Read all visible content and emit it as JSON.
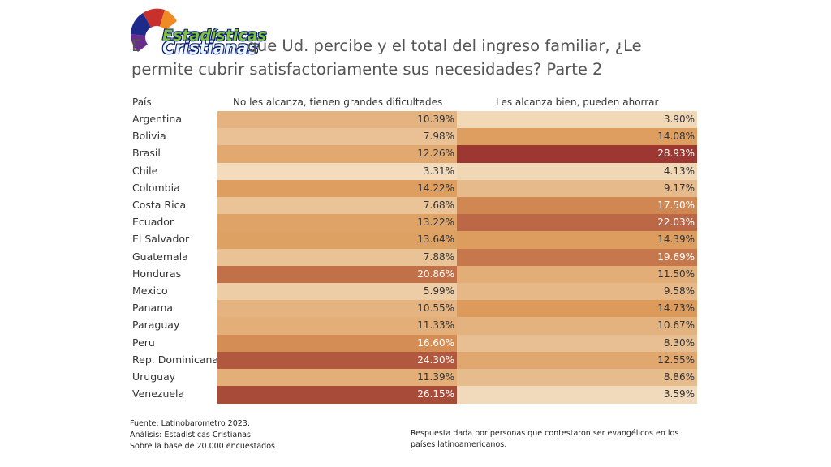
{
  "logo": {
    "line1": "Estadísticas",
    "line2": "Cristianas"
  },
  "title": {
    "line1": "E                     que Ud. percibe y el total del ingreso familiar, ¿Le",
    "line2": "permite cubrir satisfactoriamente sus necesidades?   Parte 2"
  },
  "chart_data": {
    "type": "table",
    "title": "¿Le permite cubrir satisfactoriamente sus necesidades? Parte 2",
    "row_header": "País",
    "columns": [
      "No les alcanza, tienen grandes dificultades",
      "Les alcanza bien, pueden ahorrar"
    ],
    "rows": [
      {
        "country": "Argentina",
        "values": [
          10.39,
          3.9
        ],
        "labels": [
          "10.39%",
          "3.90%"
        ]
      },
      {
        "country": "Bolivia",
        "values": [
          7.98,
          14.08
        ],
        "labels": [
          "7.98%",
          "14.08%"
        ]
      },
      {
        "country": "Brasil",
        "values": [
          12.26,
          28.93
        ],
        "labels": [
          "12.26%",
          "28.93%"
        ]
      },
      {
        "country": "Chile",
        "values": [
          3.31,
          4.13
        ],
        "labels": [
          "3.31%",
          "4.13%"
        ]
      },
      {
        "country": "Colombia",
        "values": [
          14.22,
          9.17
        ],
        "labels": [
          "14.22%",
          "9.17%"
        ]
      },
      {
        "country": "Costa Rica",
        "values": [
          7.68,
          17.5
        ],
        "labels": [
          "7.68%",
          "17.50%"
        ]
      },
      {
        "country": "Ecuador",
        "values": [
          13.22,
          22.03
        ],
        "labels": [
          "13.22%",
          "22.03%"
        ]
      },
      {
        "country": "El Salvador",
        "values": [
          13.64,
          14.39
        ],
        "labels": [
          "13.64%",
          "14.39%"
        ]
      },
      {
        "country": "Guatemala",
        "values": [
          7.88,
          19.69
        ],
        "labels": [
          "7.88%",
          "19.69%"
        ]
      },
      {
        "country": "Honduras",
        "values": [
          20.86,
          11.5
        ],
        "labels": [
          "20.86%",
          "11.50%"
        ]
      },
      {
        "country": "Mexico",
        "values": [
          5.99,
          9.58
        ],
        "labels": [
          "5.99%",
          "9.58%"
        ]
      },
      {
        "country": "Panama",
        "values": [
          10.55,
          14.73
        ],
        "labels": [
          "10.55%",
          "14.73%"
        ]
      },
      {
        "country": "Paraguay",
        "values": [
          11.33,
          10.67
        ],
        "labels": [
          "11.33%",
          "10.67%"
        ]
      },
      {
        "country": "Peru",
        "values": [
          16.6,
          8.3
        ],
        "labels": [
          "16.60%",
          "8.30%"
        ]
      },
      {
        "country": "Rep. Dominicana",
        "values": [
          24.3,
          12.55
        ],
        "labels": [
          "24.30%",
          "12.55%"
        ]
      },
      {
        "country": "Uruguay",
        "values": [
          11.39,
          8.86
        ],
        "labels": [
          "11.39%",
          "8.86%"
        ]
      },
      {
        "country": "Venezuela",
        "values": [
          26.15,
          3.59
        ],
        "labels": [
          "26.15%",
          "3.59%"
        ]
      }
    ],
    "color_scale": {
      "min_value": 3.3,
      "max_value": 28.93,
      "low_color": "#f2dcbd",
      "mid_color": "#dc9a5a",
      "high_color": "#9d3731"
    }
  },
  "footer": {
    "source": "Fuente: Latinobarometro 2023.",
    "analysis": "Análisis: Estadísticas Cristianas.",
    "base": "Sobre la base de 20.000 encuestados",
    "note": "Respuesta dada por personas que contestaron ser evangélicos en los países latinoamericanos."
  }
}
